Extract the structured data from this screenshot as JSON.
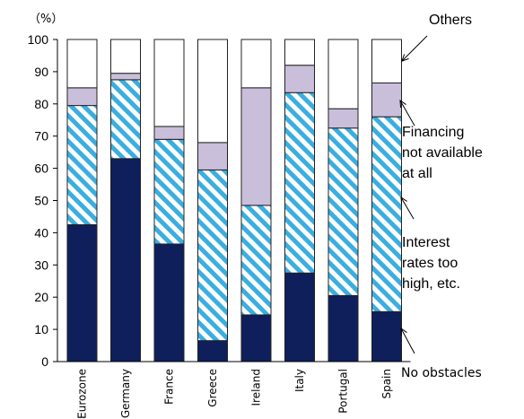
{
  "chart_data": {
    "type": "bar",
    "stacked": true,
    "unit_label": "（%）",
    "ylim": [
      0,
      100
    ],
    "yticks": [
      0,
      10,
      20,
      30,
      40,
      50,
      60,
      70,
      80,
      90,
      100
    ],
    "grid": false,
    "categories": [
      "Eurozone",
      "Germany",
      "France",
      "Greece",
      "Ireland",
      "Italy",
      "Portugal",
      "Spain"
    ],
    "series": [
      {
        "name": "No obstacles",
        "color": "#0f1f5c",
        "pattern": "solid",
        "values": [
          42.5,
          63,
          36.5,
          6.5,
          14.5,
          27.5,
          20.5,
          15.5
        ]
      },
      {
        "name": "Interest rates too high, etc.",
        "color": "#3aaee0",
        "pattern": "hatch",
        "values": [
          37,
          24.5,
          32.5,
          53,
          34,
          56,
          52,
          60.5
        ]
      },
      {
        "name": "Financing not available at all",
        "color": "#c9bfdb",
        "pattern": "solid",
        "values": [
          5.5,
          2,
          4,
          8.5,
          36.5,
          8.5,
          6,
          10.5
        ]
      },
      {
        "name": "Others",
        "color": "#ffffff",
        "pattern": "solid",
        "values": [
          15,
          10.5,
          27,
          32,
          15,
          8,
          21.5,
          13.5
        ]
      }
    ],
    "annotations": [
      {
        "id": "others",
        "lines": [
          "Others"
        ],
        "style": "large"
      },
      {
        "id": "financing",
        "lines": [
          "Financing",
          "not available",
          "at all"
        ],
        "style": "large"
      },
      {
        "id": "interest",
        "lines": [
          "Interest",
          "rates too",
          "high, etc."
        ],
        "style": "large"
      },
      {
        "id": "no-obstacles",
        "lines": [
          "No obstacles"
        ],
        "style": "small"
      }
    ]
  }
}
